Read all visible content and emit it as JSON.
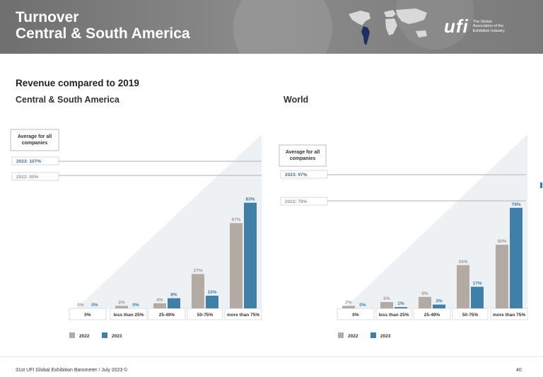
{
  "header": {
    "title_line1": "Turnover",
    "title_line2": "Central & South America",
    "logo": "ufi",
    "logo_tagline": [
      "The Global",
      "Association of the",
      "Exhibition Industry"
    ]
  },
  "headings": {
    "main": "Revenue compared to 2019",
    "left": "Central & South America",
    "right": "World"
  },
  "colors": {
    "c2022": "#b3aaa3",
    "c2023": "#3f7fa8",
    "ref_line": "#c8c8c8",
    "triangle": "#eef1f4"
  },
  "chart_data": [
    {
      "type": "bar",
      "region": "Central & South America",
      "categories": [
        "0%",
        "less than 25%",
        "25-49%",
        "50-75%",
        "more than 75%"
      ],
      "series": [
        {
          "name": "2022",
          "values": [
            0,
            2,
            4,
            27,
            67
          ],
          "labels": [
            "0%",
            "2%",
            "4%",
            "27%",
            "67%"
          ]
        },
        {
          "name": "2023",
          "values": [
            0,
            0,
            8,
            10,
            83
          ],
          "labels": [
            "0%",
            "0%",
            "8%",
            "10%",
            "83%"
          ]
        }
      ],
      "ylim": [
        0,
        100
      ],
      "legend": [
        "2022",
        "2023"
      ],
      "average_box_label": "Average for all companies",
      "reference_labels": [
        "2023: 107%",
        "2022: 95%"
      ]
    },
    {
      "type": "bar",
      "region": "World",
      "categories": [
        "0%",
        "less than 25%",
        "25-49%",
        "50-75%",
        "more than 75%"
      ],
      "series": [
        {
          "name": "2022",
          "values": [
            2,
            5,
            9,
            34,
            50
          ],
          "labels": [
            "2%",
            "5%",
            "9%",
            "34%",
            "50%"
          ]
        },
        {
          "name": "2023",
          "values": [
            0,
            1,
            3,
            17,
            79
          ],
          "labels": [
            "0%",
            "1%",
            "3%",
            "17%",
            "79%"
          ]
        }
      ],
      "ylim": [
        0,
        100
      ],
      "legend": [
        "2022",
        "2023"
      ],
      "average_box_label": "Average for all companies",
      "reference_labels": [
        "2023: 97%",
        "2022: 78%"
      ]
    }
  ],
  "footer": {
    "source": "31st UFI Global Exhibition Barometer / July 2023 ©",
    "page": "40"
  }
}
